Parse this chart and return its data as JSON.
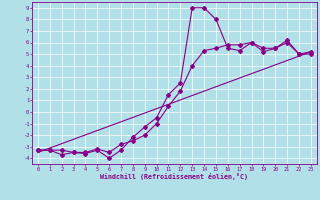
{
  "xlabel": "Windchill (Refroidissement éolien,°C)",
  "bg_color": "#b2e0e8",
  "line_color": "#880088",
  "grid_color": "#ffffff",
  "xlim": [
    -0.5,
    23.5
  ],
  "ylim": [
    -4.5,
    9.5
  ],
  "xticks": [
    0,
    1,
    2,
    3,
    4,
    5,
    6,
    7,
    8,
    9,
    10,
    11,
    12,
    13,
    14,
    15,
    16,
    17,
    18,
    19,
    20,
    21,
    22,
    23
  ],
  "yticks": [
    -4,
    -3,
    -2,
    -1,
    0,
    1,
    2,
    3,
    4,
    5,
    6,
    7,
    8,
    9
  ],
  "series1_x": [
    0,
    1,
    2,
    3,
    4,
    5,
    6,
    7,
    8,
    9,
    10,
    11,
    12,
    13,
    14,
    15,
    16,
    17,
    18,
    19,
    20,
    21,
    22,
    23
  ],
  "series1_y": [
    -3.3,
    -3.3,
    -3.7,
    -3.5,
    -3.6,
    -3.3,
    -4.0,
    -3.3,
    -2.2,
    -1.3,
    -0.5,
    1.5,
    2.5,
    9.0,
    9.0,
    8.0,
    5.5,
    5.3,
    6.0,
    5.2,
    5.5,
    6.2,
    5.0,
    5.0
  ],
  "series2_x": [
    0,
    1,
    2,
    3,
    4,
    5,
    6,
    7,
    8,
    9,
    10,
    11,
    12,
    13,
    14,
    15,
    16,
    17,
    18,
    19,
    20,
    21,
    22,
    23
  ],
  "series2_y": [
    -3.3,
    -3.3,
    -3.3,
    -3.5,
    -3.5,
    -3.2,
    -3.5,
    -2.8,
    -2.5,
    -2.0,
    -1.0,
    0.5,
    1.8,
    4.0,
    5.3,
    5.5,
    5.8,
    5.8,
    6.0,
    5.5,
    5.5,
    6.0,
    5.0,
    5.2
  ],
  "series3_x": [
    0,
    23
  ],
  "series3_y": [
    -3.5,
    5.2
  ]
}
